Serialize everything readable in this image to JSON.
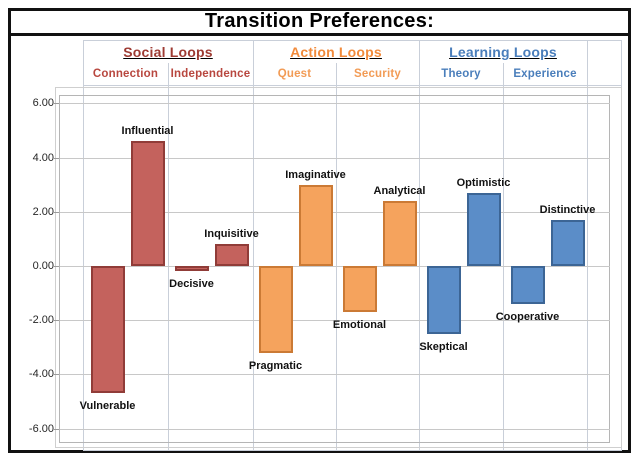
{
  "title": "Transition Preferences:",
  "header": {
    "groups": [
      {
        "label": "Social Loops",
        "color": "#9E3B33",
        "trait_color": "#B8473F",
        "traits": [
          {
            "label": "Connection"
          },
          {
            "label": "Independence"
          }
        ]
      },
      {
        "label": "Action Loops",
        "color": "#F28B3C",
        "trait_color": "#F29B55",
        "traits": [
          {
            "label": "Quest"
          },
          {
            "label": "Security"
          }
        ]
      },
      {
        "label": "Learning Loops",
        "color": "#4A7EBB",
        "trait_color": "#4A7EBB",
        "traits": [
          {
            "label": "Theory"
          },
          {
            "label": "Experience"
          }
        ]
      }
    ]
  },
  "chart_data": {
    "type": "bar",
    "title": "Transition Preferences:",
    "categories": [
      "Connection",
      "Independence",
      "Quest",
      "Security",
      "Theory",
      "Experience"
    ],
    "category_groups": [
      {
        "label": "Social Loops",
        "categories": [
          "Connection",
          "Independence"
        ]
      },
      {
        "label": "Action Loops",
        "categories": [
          "Quest",
          "Security"
        ]
      },
      {
        "label": "Learning Loops",
        "categories": [
          "Theory",
          "Experience"
        ]
      }
    ],
    "bars": [
      {
        "label": "Vulnerable",
        "category": "Connection",
        "value": -4.7,
        "series": "social"
      },
      {
        "label": "Influential",
        "category": "Connection",
        "value": 4.6,
        "series": "social"
      },
      {
        "label": "Decisive",
        "category": "Independence",
        "value": -0.2,
        "series": "social"
      },
      {
        "label": "Inquisitive",
        "category": "Independence",
        "value": 0.8,
        "series": "social"
      },
      {
        "label": "Pragmatic",
        "category": "Quest",
        "value": -3.2,
        "series": "action"
      },
      {
        "label": "Imaginative",
        "category": "Quest",
        "value": 3.0,
        "series": "action"
      },
      {
        "label": "Emotional",
        "category": "Security",
        "value": -1.7,
        "series": "action"
      },
      {
        "label": "Analytical",
        "category": "Security",
        "value": 2.4,
        "series": "action"
      },
      {
        "label": "Skeptical",
        "category": "Theory",
        "value": -2.5,
        "series": "learning"
      },
      {
        "label": "Optimistic",
        "category": "Theory",
        "value": 2.7,
        "series": "learning"
      },
      {
        "label": "Cooperative",
        "category": "Experience",
        "value": -1.4,
        "series": "learning"
      },
      {
        "label": "Distinctive",
        "category": "Experience",
        "value": 1.7,
        "series": "learning"
      }
    ],
    "ylim": [
      -6,
      6
    ],
    "y_ticks": [
      "6.00",
      "4.00",
      "2.00",
      "0.00",
      "-2.00",
      "-4.00",
      "-6.00"
    ],
    "grid": true,
    "legend": false,
    "series_colors": {
      "social": {
        "fill": "#C4625D",
        "border": "#903C38"
      },
      "action": {
        "fill": "#F5A35D",
        "border": "#CB7A35"
      },
      "learning": {
        "fill": "#5B8DC8",
        "border": "#3C6595"
      }
    }
  }
}
